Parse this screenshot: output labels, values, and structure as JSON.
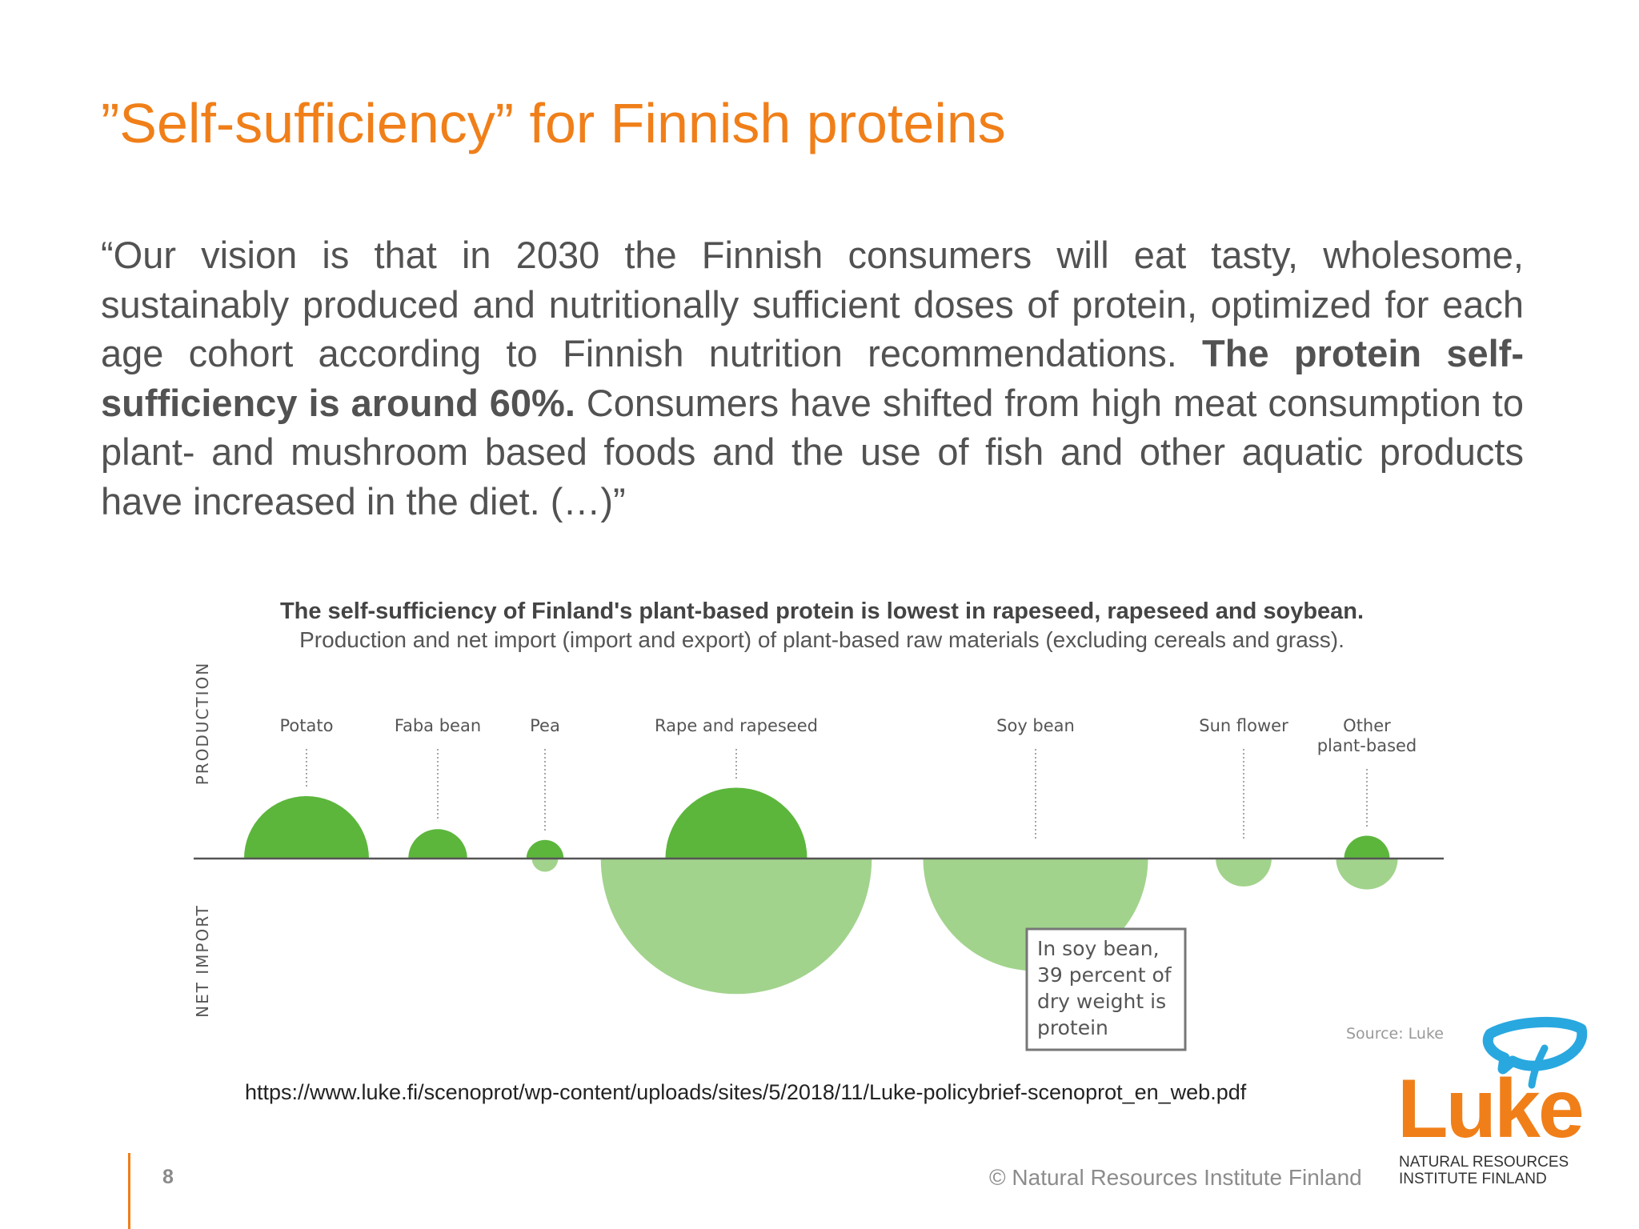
{
  "slide": {
    "title": "”Self-sufficiency” for Finnish proteins",
    "quote": {
      "part1": "“Our vision is that in 2030 the Finnish consumers will eat tasty, wholesome, sustainably produced and nutritionally sufficient doses of protein, optimized for each age cohort according to Finnish nutrition recommendations. ",
      "bold": "The protein self-sufficiency is around 60%.",
      "part2": " Consumers have shifted from high meat consumption to plant- and mushroom based foods and the use of fish and other aquatic products have increased in the diet. (…)”"
    },
    "source_url": "https://www.luke.fi/scenoprot/wp-content/uploads/sites/5/2018/11/Luke-policybrief-scenoprot_en_web.pdf",
    "page_number": "8",
    "copyright": "© Natural Resources Institute Finland",
    "logo": {
      "word": "Luke",
      "line1": "NATURAL RESOURCES",
      "line2": "INSTITUTE FINLAND"
    }
  },
  "figure": {
    "title": "The self-sufficiency of Finland's plant-based protein is lowest in rapeseed, rapeseed and soybean.",
    "subtitle": "Production and net import (import and export) of plant-based raw materials (excluding cereals and grass).",
    "axis_top": "PRODUCTION",
    "axis_bottom": "NET IMPORT",
    "callout_lines": [
      "In soy bean,",
      "39 percent of",
      "dry weight is",
      "protein"
    ],
    "source": "Source: Luke",
    "colors": {
      "production": "#5cb63c",
      "net_import": "#a2d38c",
      "baseline": "#555555",
      "label": "#555555"
    }
  },
  "chart_data": {
    "type": "bubble",
    "categories": [
      "Potato",
      "Faba bean",
      "Pea",
      "Rape and rapeseed",
      "Soy bean",
      "Sun flower",
      "Other plant-based"
    ],
    "series": [
      {
        "name": "PRODUCTION",
        "values": [
          2.25,
          0.5,
          0.2,
          2.9,
          0,
          0,
          0.3
        ]
      },
      {
        "name": "NET IMPORT",
        "values": [
          0,
          0,
          0.1,
          10.6,
          7.3,
          0.45,
          0.55
        ]
      }
    ]
  }
}
